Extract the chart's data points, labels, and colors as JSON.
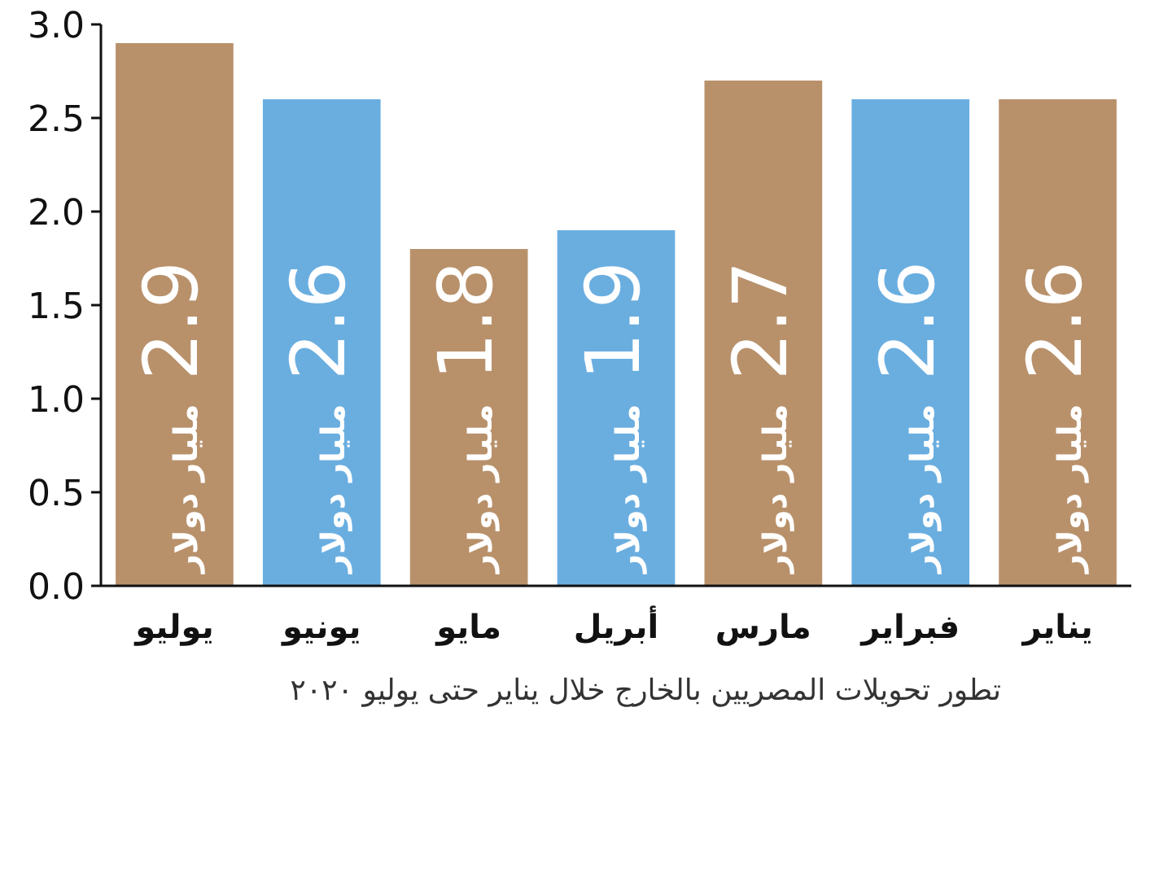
{
  "chart_data": {
    "type": "bar",
    "categories": [
      "يوليو",
      "يونيو",
      "مايو",
      "أبريل",
      "مارس",
      "فبراير",
      "يناير"
    ],
    "values": [
      2.9,
      2.6,
      1.8,
      1.9,
      2.7,
      2.6,
      2.6
    ],
    "colors": [
      "#b8916b",
      "#6aaee0",
      "#b8916b",
      "#6aaee0",
      "#b8916b",
      "#6aaee0",
      "#b8916b"
    ],
    "value_labels": [
      "2.9 مليار دولار",
      "2.6 مليار دولار",
      "1.8 مليار دولار",
      "1.9 مليار دولار",
      "2.7 مليار دولار",
      "2.6 مليار دولار",
      "2.6 مليار دولار"
    ],
    "ylim": [
      0,
      3
    ],
    "yticks": [
      {
        "value": 0,
        "label": "0.0"
      },
      {
        "value": 0.5,
        "label": "0.5"
      },
      {
        "value": 1,
        "label": "1.0"
      },
      {
        "value": 1.5,
        "label": "1.5"
      },
      {
        "value": 2,
        "label": "2.0"
      },
      {
        "value": 2.5,
        "label": "2.5"
      },
      {
        "value": 3,
        "label": "3.0"
      }
    ],
    "annotations": [
      "تطور تحويلات المصريين بالخارج خلال يناير حتى يوليو ٢٠٢٠"
    ],
    "grid": false
  }
}
